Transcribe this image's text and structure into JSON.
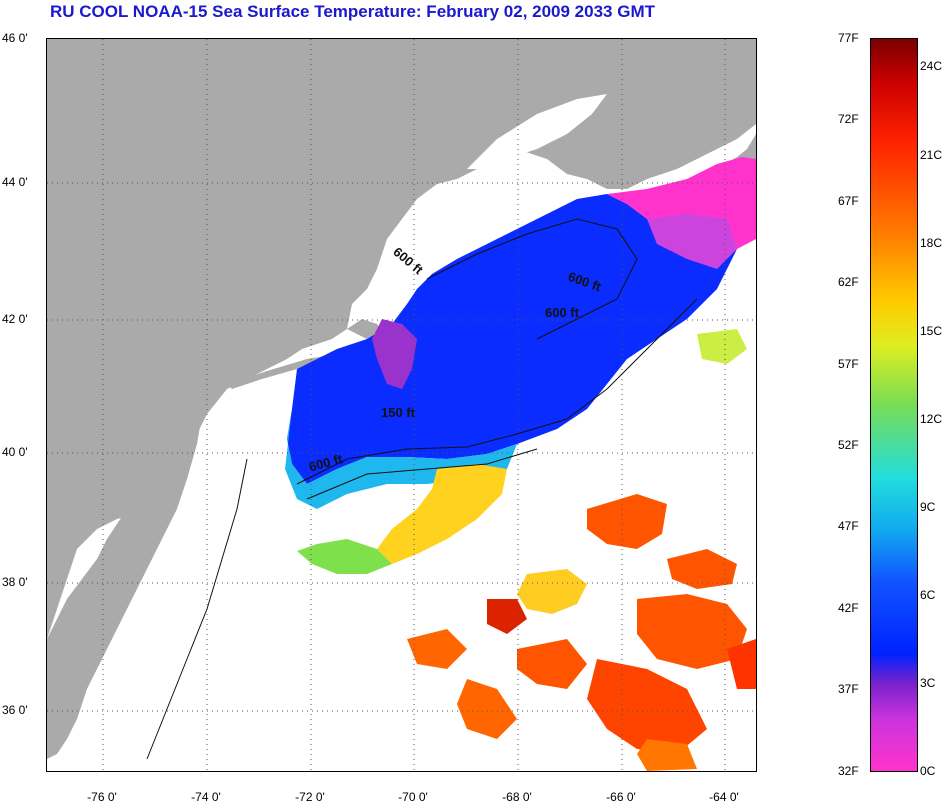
{
  "title": "RU COOL  NOAA-15  Sea Surface Temperature:  February 02, 2009 2033 GMT",
  "lat_labels": [
    "46 0'",
    "44 0'",
    "42 0'",
    "40 0'",
    "38 0'",
    "36 0'"
  ],
  "lon_labels": [
    "-76 0'",
    "-74 0'",
    "-72 0'",
    "-70 0'",
    "-68 0'",
    "-66 0'",
    "-64 0'"
  ],
  "contour_labels": [
    "600 ft",
    "600 ft",
    "600 ft",
    "150 ft",
    "600 ft"
  ],
  "colorbar": {
    "fahrenheit_labels": [
      "77F",
      "72F",
      "67F",
      "62F",
      "57F",
      "52F",
      "47F",
      "42F",
      "37F",
      "32F"
    ],
    "celsius_labels": [
      "24C",
      "21C",
      "18C",
      "15C",
      "12C",
      "9C",
      "6C",
      "3C",
      "0C"
    ]
  },
  "colors": {
    "title": "#1a1acc",
    "land": "#aaaaaa",
    "cold": "#0a2cff",
    "coldest": "#ff33cc",
    "warm": "#ff5500",
    "hot": "#cc1100"
  }
}
